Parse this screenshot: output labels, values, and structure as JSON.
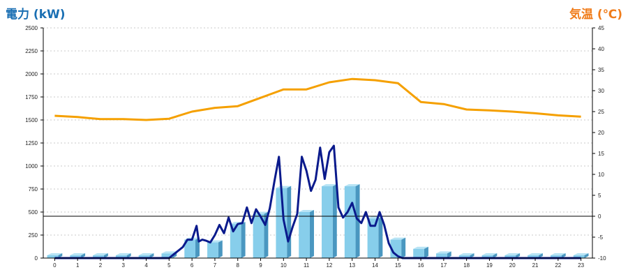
{
  "chart_data": {
    "type": "bar",
    "ylabel_left": "電力 (kW)",
    "ylabel_right": "気温 (℃)",
    "categories": [
      0,
      1,
      2,
      3,
      4,
      5,
      6,
      7,
      8,
      9,
      10,
      11,
      12,
      13,
      14,
      15,
      16,
      17,
      18,
      19,
      20,
      21,
      22,
      23
    ],
    "y_left": {
      "lim": [
        0,
        2500
      ],
      "ticks": [
        0,
        250,
        500,
        750,
        1000,
        1250,
        1500,
        1750,
        2000,
        2250,
        2500
      ]
    },
    "y_right": {
      "lim": [
        -10,
        45
      ],
      "ticks": [
        -10,
        -5,
        0,
        5,
        10,
        15,
        20,
        25,
        30,
        35,
        40,
        45
      ]
    },
    "grid": true,
    "bars": {
      "color": "#87ceeb",
      "values": [
        30,
        30,
        30,
        30,
        30,
        50,
        200,
        170,
        370,
        480,
        760,
        500,
        780,
        780,
        430,
        200,
        100,
        50,
        30,
        30,
        30,
        30,
        30,
        30
      ]
    },
    "power_line": {
      "color": "#0a1a8c",
      "x": [
        0,
        1,
        2,
        3,
        4,
        5,
        5.3,
        5.6,
        5.8,
        6.0,
        6.2,
        6.3,
        6.45,
        6.6,
        6.8,
        7.0,
        7.2,
        7.4,
        7.6,
        7.8,
        8.0,
        8.2,
        8.4,
        8.6,
        8.8,
        9.0,
        9.2,
        9.4,
        9.6,
        9.8,
        10.0,
        10.2,
        10.4,
        10.6,
        10.8,
        11.0,
        11.2,
        11.4,
        11.6,
        11.8,
        12.0,
        12.2,
        12.4,
        12.6,
        12.8,
        13.0,
        13.2,
        13.4,
        13.6,
        13.8,
        14.0,
        14.2,
        14.4,
        14.6,
        14.8,
        15.0,
        15.2,
        15.4,
        15.6,
        15.8,
        16.0,
        16.3,
        16.6,
        16.9,
        17,
        18,
        19,
        20,
        21,
        22,
        23
      ],
      "y": [
        0,
        0,
        0,
        0,
        0,
        0,
        60,
        120,
        200,
        200,
        350,
        180,
        200,
        190,
        170,
        250,
        360,
        270,
        440,
        290,
        370,
        380,
        550,
        380,
        530,
        450,
        360,
        540,
        830,
        1100,
        420,
        180,
        340,
        480,
        1100,
        950,
        730,
        850,
        1200,
        860,
        1150,
        1220,
        550,
        440,
        500,
        600,
        430,
        380,
        500,
        350,
        350,
        500,
        360,
        160,
        60,
        20,
        0,
        0,
        0,
        0,
        0,
        0,
        0,
        0,
        0,
        0,
        0,
        0,
        0,
        0,
        0
      ]
    },
    "temp_line": {
      "color": "#f5a000",
      "x": [
        0,
        1,
        2,
        3,
        4,
        5,
        6,
        7,
        8,
        9,
        10,
        11,
        12,
        13,
        14,
        15,
        16,
        17,
        18,
        19,
        20,
        21,
        22,
        23
      ],
      "y": [
        24.0,
        23.7,
        23.2,
        23.2,
        23.0,
        23.3,
        25.0,
        25.9,
        26.3,
        28.3,
        30.3,
        30.3,
        32.0,
        32.8,
        32.5,
        31.8,
        27.3,
        26.8,
        25.5,
        25.3,
        25.0,
        24.6,
        24.1,
        23.8
      ]
    }
  }
}
